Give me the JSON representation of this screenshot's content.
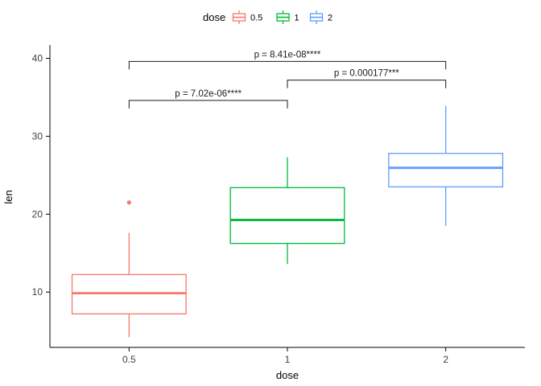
{
  "chart_data": {
    "type": "boxplot",
    "title": "",
    "xlabel": "dose",
    "ylabel": "len",
    "categories": [
      "0.5",
      "1",
      "2"
    ],
    "ylim": [
      2.9,
      41.5
    ],
    "yticks": [
      10,
      20,
      30,
      40
    ],
    "grid": false,
    "legend": {
      "title": "dose",
      "position": "top",
      "entries": [
        {
          "label": "0.5",
          "color": "#F8766D"
        },
        {
          "label": "1",
          "color": "#00BA38"
        },
        {
          "label": "2",
          "color": "#619CFF"
        }
      ]
    },
    "series": [
      {
        "name": "0.5",
        "color": "#F8766D",
        "whisker_low": 4.2,
        "q1": 7.2,
        "median": 9.85,
        "q3": 12.25,
        "whisker_high": 17.6,
        "outliers": [
          21.5
        ]
      },
      {
        "name": "1",
        "color": "#00BA38",
        "whisker_low": 13.6,
        "q1": 16.25,
        "median": 19.25,
        "q3": 23.4,
        "whisker_high": 27.3,
        "outliers": []
      },
      {
        "name": "2",
        "color": "#619CFF",
        "whisker_low": 18.5,
        "q1": 23.5,
        "median": 25.95,
        "q3": 27.8,
        "whisker_high": 33.9,
        "outliers": []
      }
    ],
    "comparisons": [
      {
        "group1": "0.5",
        "group2": "2",
        "label": "p = 8.41e-08****",
        "y": 39.6
      },
      {
        "group1": "1",
        "group2": "2",
        "label": "p = 0.000177***",
        "y": 37.2
      },
      {
        "group1": "0.5",
        "group2": "1",
        "label": "p = 7.02e-06****",
        "y": 34.6
      }
    ]
  }
}
